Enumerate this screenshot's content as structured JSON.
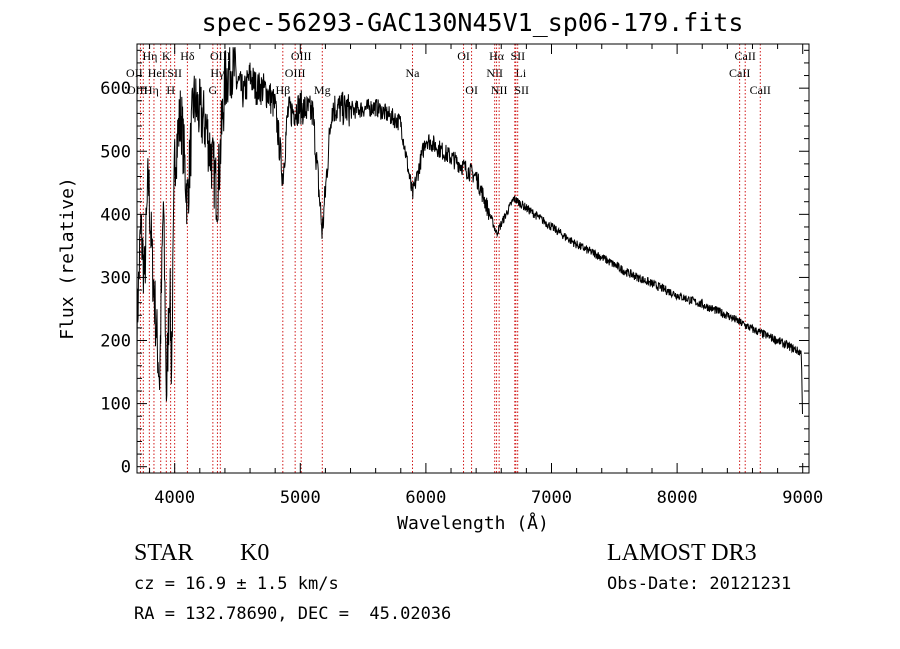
{
  "chart_data": {
    "type": "line",
    "title": "spec-56293-GAC130N45V1_sp06-179.fits",
    "xlabel": "Wavelength (Å)",
    "ylabel": "Flux (relative)",
    "xlim": [
      3700,
      9050
    ],
    "ylim": [
      -10,
      670
    ],
    "x_ticks": [
      4000,
      5000,
      6000,
      7000,
      8000,
      9000
    ],
    "y_ticks": [
      0,
      100,
      200,
      300,
      400,
      500,
      600
    ],
    "spectrum_anchors": [
      [
        3700,
        220
      ],
      [
        3730,
        380
      ],
      [
        3760,
        300
      ],
      [
        3790,
        460
      ],
      [
        3820,
        330
      ],
      [
        3850,
        230
      ],
      [
        3880,
        140
      ],
      [
        3910,
        420
      ],
      [
        3935,
        110
      ],
      [
        3960,
        300
      ],
      [
        3975,
        150
      ],
      [
        4000,
        490
      ],
      [
        4050,
        560
      ],
      [
        4101,
        420
      ],
      [
        4150,
        580
      ],
      [
        4200,
        560
      ],
      [
        4250,
        540
      ],
      [
        4300,
        480
      ],
      [
        4340,
        430
      ],
      [
        4400,
        610
      ],
      [
        4450,
        640
      ],
      [
        4500,
        610
      ],
      [
        4550,
        590
      ],
      [
        4600,
        620
      ],
      [
        4650,
        600
      ],
      [
        4700,
        600
      ],
      [
        4750,
        590
      ],
      [
        4800,
        570
      ],
      [
        4861,
        460
      ],
      [
        4900,
        560
      ],
      [
        5000,
        570
      ],
      [
        5100,
        560
      ],
      [
        5175,
        370
      ],
      [
        5250,
        570
      ],
      [
        5400,
        565
      ],
      [
        5600,
        570
      ],
      [
        5800,
        545
      ],
      [
        5893,
        430
      ],
      [
        6000,
        520
      ],
      [
        6200,
        490
      ],
      [
        6400,
        460
      ],
      [
        6563,
        370
      ],
      [
        6700,
        425
      ],
      [
        6800,
        410
      ],
      [
        7000,
        380
      ],
      [
        7200,
        352
      ],
      [
        7400,
        332
      ],
      [
        7600,
        308
      ],
      [
        7800,
        290
      ],
      [
        8000,
        272
      ],
      [
        8200,
        257
      ],
      [
        8400,
        240
      ],
      [
        8600,
        218
      ],
      [
        8800,
        200
      ],
      [
        8900,
        190
      ],
      [
        8990,
        180
      ],
      [
        9000,
        60
      ]
    ],
    "lines": [
      {
        "wl": 3727,
        "label": "OII",
        "row": 1,
        "dx": -6
      },
      {
        "wl": 3750,
        "label": "OIII",
        "row": 2,
        "dx": -6
      },
      {
        "wl": 3798,
        "label": "Hη",
        "row": 2,
        "dx": 2
      },
      {
        "wl": 3835,
        "label": "Hη",
        "row": 0,
        "dx": -4
      },
      {
        "wl": 3889,
        "label": "HeI",
        "row": 1,
        "dx": -4
      },
      {
        "wl": 3933,
        "label": "K",
        "row": 0,
        "dx": 0
      },
      {
        "wl": 3968,
        "label": "H",
        "row": 2,
        "dx": 0
      },
      {
        "wl": 4000,
        "label": "SII",
        "row": 1,
        "dx": 0
      },
      {
        "wl": 4101,
        "label": "Hδ",
        "row": 0,
        "dx": 0
      },
      {
        "wl": 4304,
        "label": "G",
        "row": 2,
        "dx": 0
      },
      {
        "wl": 4340,
        "label": "Hγ",
        "row": 1,
        "dx": 0
      },
      {
        "wl": 4363,
        "label": "OIII",
        "row": 0,
        "dx": 0
      },
      {
        "wl": 4861,
        "label": "Hβ",
        "row": 2,
        "dx": 0
      },
      {
        "wl": 4959,
        "label": "OIII",
        "row": 1,
        "dx": 0
      },
      {
        "wl": 5007,
        "label": "OIII",
        "row": 0,
        "dx": 0
      },
      {
        "wl": 5175,
        "label": "Mg",
        "row": 2,
        "dx": 0
      },
      {
        "wl": 5893,
        "label": "Na",
        "row": 1,
        "dx": 0
      },
      {
        "wl": 6300,
        "label": "OI",
        "row": 0,
        "dx": 0
      },
      {
        "wl": 6364,
        "label": "OI",
        "row": 2,
        "dx": 0
      },
      {
        "wl": 6548,
        "label": "NII",
        "row": 1,
        "dx": 0
      },
      {
        "wl": 6563,
        "label": "Hα",
        "row": 0,
        "dx": 0
      },
      {
        "wl": 6583,
        "label": "NII",
        "row": 2,
        "dx": 0
      },
      {
        "wl": 6708,
        "label": "Li",
        "row": 1,
        "dx": 6
      },
      {
        "wl": 6716,
        "label": "SII",
        "row": 0,
        "dx": 2
      },
      {
        "wl": 6731,
        "label": "SII",
        "row": 2,
        "dx": 4
      },
      {
        "wl": 8498,
        "label": "CaII",
        "row": 1,
        "dx": 0
      },
      {
        "wl": 8542,
        "label": "CaII",
        "row": 0,
        "dx": 0
      },
      {
        "wl": 8662,
        "label": "CaII",
        "row": 2,
        "dx": 0
      }
    ]
  },
  "info": {
    "class": "STAR",
    "subclass": "K0",
    "survey": "LAMOST DR3",
    "cz": "cz = 16.9 ± 1.5 km/s",
    "obs_date": "Obs-Date: 20121231",
    "coords": "RA = 132.78690, DEC =  45.02036"
  },
  "colors": {
    "axis": "#000000",
    "spectrum": "#000000",
    "line_marker": "#cc0000"
  }
}
